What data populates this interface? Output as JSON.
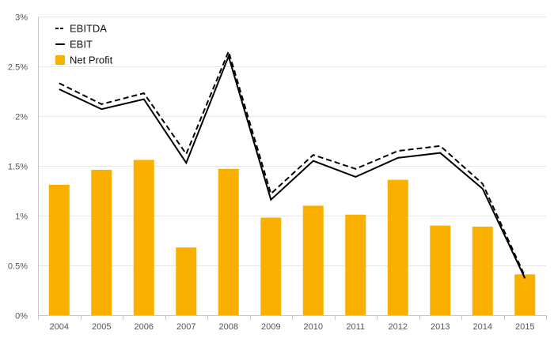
{
  "chart_data": {
    "type": "bar",
    "title": "",
    "xlabel": "",
    "ylabel": "",
    "categories": [
      "2004",
      "2005",
      "2006",
      "2007",
      "2008",
      "2009",
      "2010",
      "2011",
      "2012",
      "2013",
      "2014",
      "2015"
    ],
    "ylim": [
      0,
      3
    ],
    "yticks": [
      0,
      0.5,
      1,
      1.5,
      2,
      2.5,
      3
    ],
    "ytick_labels": [
      "0%",
      "0.5%",
      "1%",
      "1.5%",
      "2%",
      "2.5%",
      "3%"
    ],
    "grid": true,
    "legend_position": "top-left",
    "series": [
      {
        "name": "EBITDA",
        "kind": "line",
        "style": "dashed",
        "color": "#000000",
        "values": [
          2.33,
          2.12,
          2.23,
          1.62,
          2.65,
          1.22,
          1.61,
          1.47,
          1.65,
          1.7,
          1.32,
          0.39
        ]
      },
      {
        "name": "EBIT",
        "kind": "line",
        "style": "solid",
        "color": "#000000",
        "values": [
          2.27,
          2.07,
          2.17,
          1.53,
          2.6,
          1.16,
          1.55,
          1.39,
          1.58,
          1.63,
          1.27,
          0.37
        ]
      },
      {
        "name": "Net Profit",
        "kind": "bar",
        "color": "#F9B000",
        "values": [
          1.31,
          1.46,
          1.56,
          0.68,
          1.47,
          0.98,
          1.1,
          1.01,
          1.36,
          0.9,
          0.89,
          0.41
        ]
      }
    ]
  }
}
